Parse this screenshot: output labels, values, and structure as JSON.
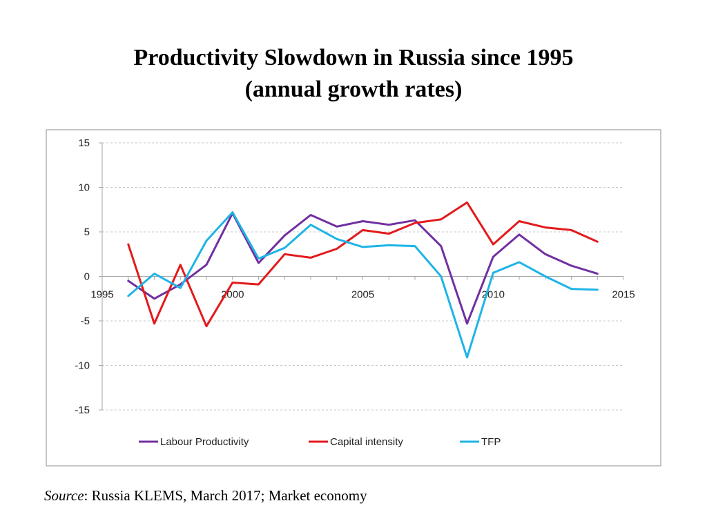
{
  "slide": {
    "title_line1": "Productivity Slowdown in Russia since 1995",
    "title_line2": "(annual growth rates)",
    "source_label": "Source",
    "source_text": ": Russia KLEMS, March 2017; Market economy"
  },
  "chart_data": {
    "type": "line",
    "title": "",
    "xlabel": "",
    "ylabel": "",
    "xlim": [
      1995,
      2015
    ],
    "ylim": [
      -15,
      15
    ],
    "x_ticks": [
      1995,
      2000,
      2005,
      2010,
      2015
    ],
    "y_ticks": [
      15,
      10,
      5,
      0,
      -5,
      -10,
      -15
    ],
    "grid": "horizontal-dashed",
    "legend_position": "bottom",
    "x": [
      1996,
      1997,
      1998,
      1999,
      2000,
      2001,
      2002,
      2003,
      2004,
      2005,
      2006,
      2007,
      2008,
      2009,
      2010,
      2011,
      2012,
      2013,
      2014
    ],
    "series": [
      {
        "name": "Labour Productivity",
        "color": "#7030A0",
        "values": [
          -0.5,
          -2.5,
          -0.9,
          1.3,
          7.1,
          1.5,
          4.6,
          6.9,
          5.6,
          6.2,
          5.8,
          6.3,
          3.4,
          -5.3,
          2.2,
          4.7,
          2.5,
          1.2,
          0.3
        ]
      },
      {
        "name": "Capital intensity",
        "color": "#E31A1C",
        "values": [
          3.6,
          -5.3,
          1.3,
          -5.6,
          -0.7,
          -0.9,
          2.5,
          2.1,
          3.1,
          5.2,
          4.8,
          6.0,
          6.4,
          8.3,
          3.6,
          6.2,
          5.5,
          5.2,
          3.9
        ]
      },
      {
        "name": "TFP",
        "color": "#1EB4E6",
        "values": [
          -2.2,
          0.3,
          -1.3,
          4.0,
          7.2,
          2.0,
          3.2,
          5.8,
          4.2,
          3.3,
          3.5,
          3.4,
          0.0,
          -9.1,
          0.4,
          1.6,
          0.0,
          -1.4,
          -1.5
        ]
      }
    ]
  }
}
